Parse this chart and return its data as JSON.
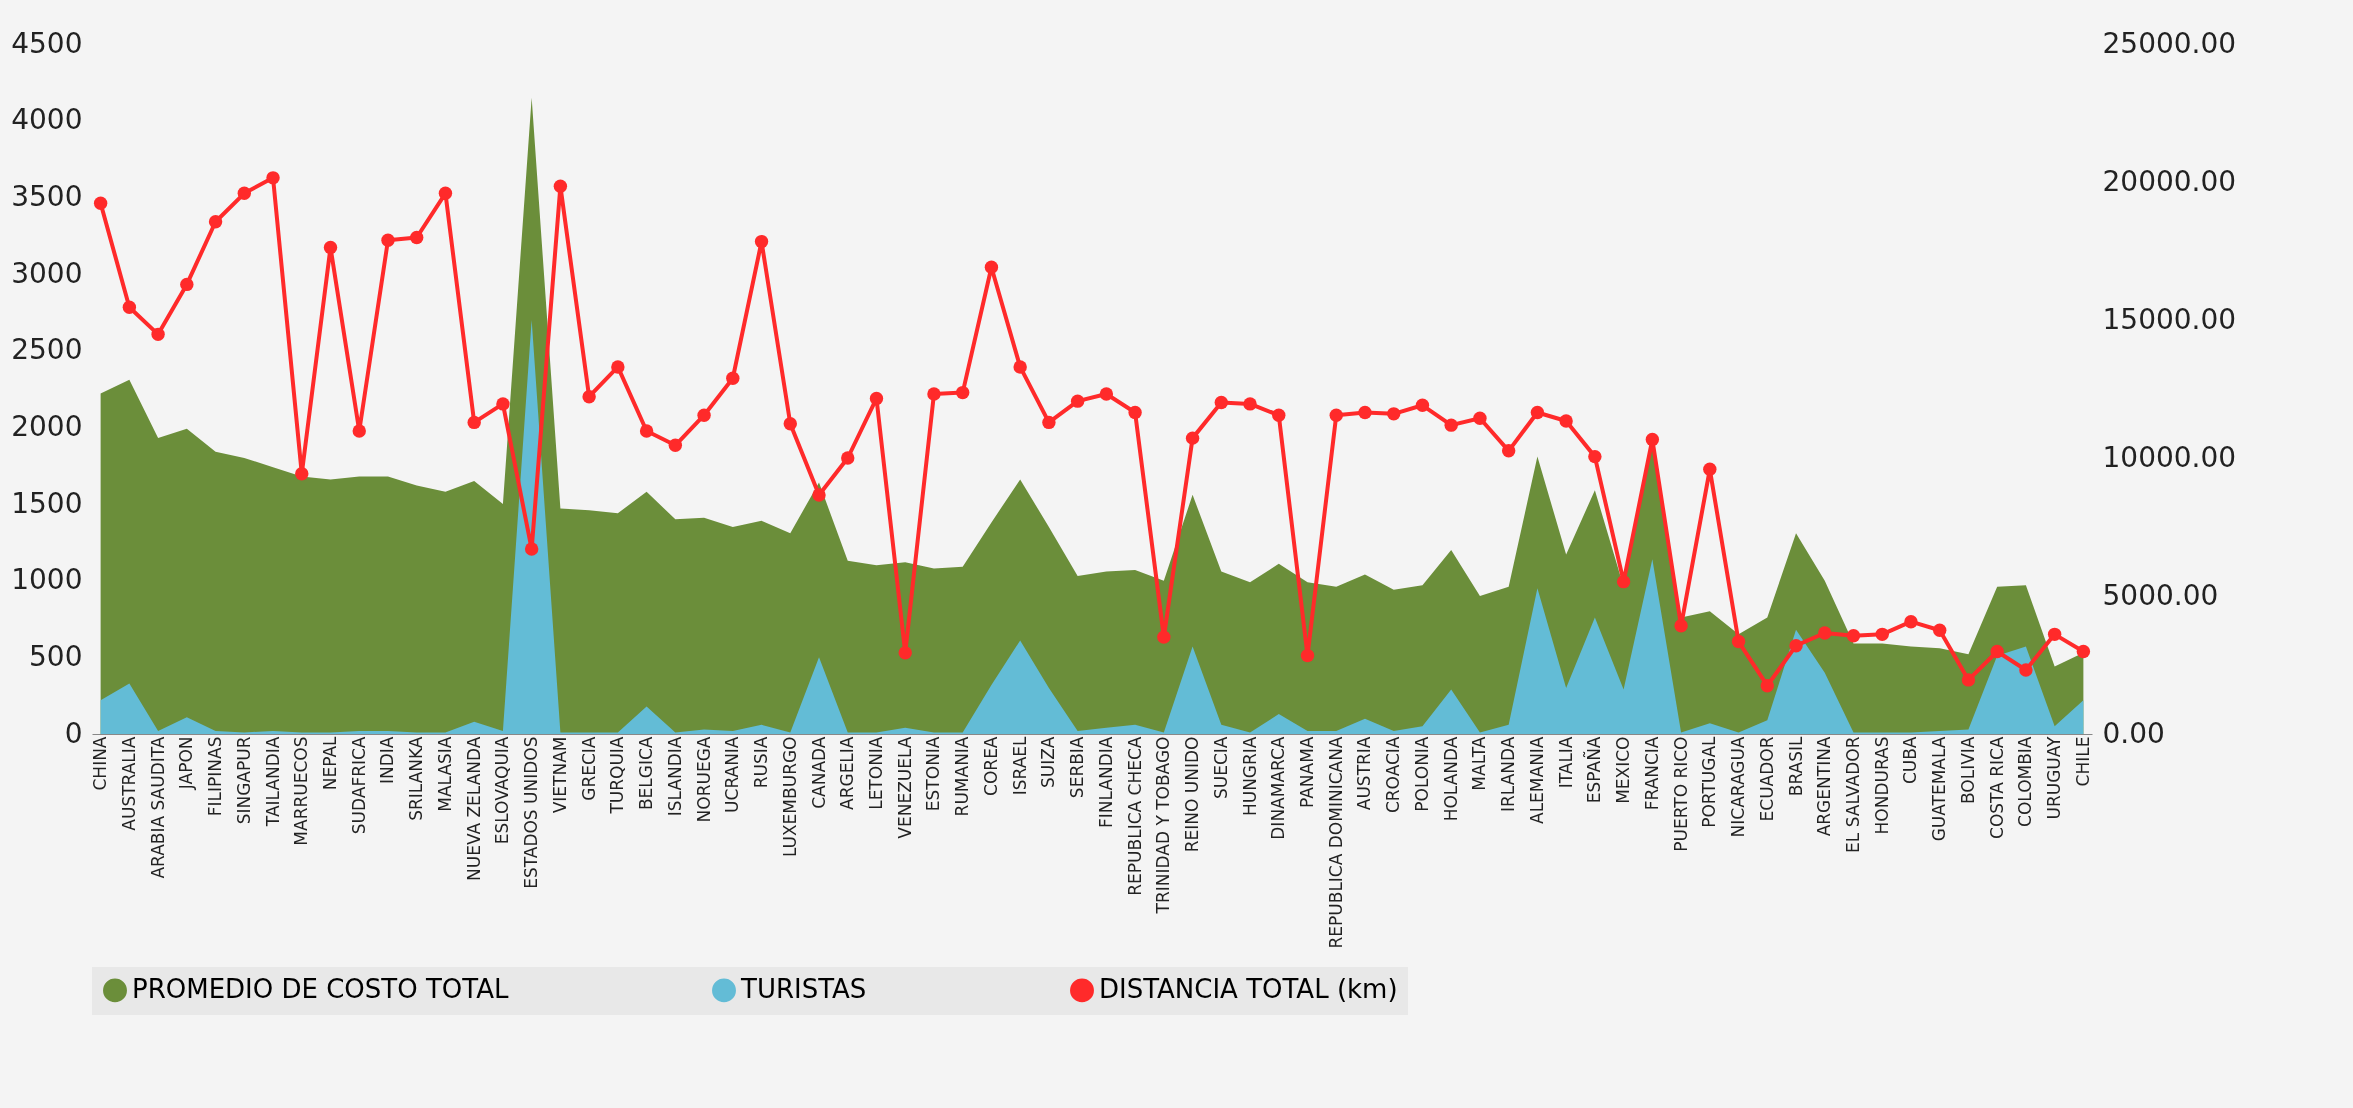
{
  "chart_data": {
    "type": "area",
    "categories": [
      "CHINA",
      "AUSTRALIA",
      "ARABIA SAUDITA",
      "JAPON",
      "FILIPINAS",
      "SINGAPUR",
      "TAILANDIA",
      "MARRUECOS",
      "NEPAL",
      "SUDAFRICA",
      "INDIA",
      "SRILANKA",
      "MALASIA",
      "NUEVA ZELANDA",
      "ESLOVAQUIA",
      "ESTADOS UNIDOS",
      "VIETNAM",
      "GRECIA",
      "TURQUIA",
      "BELGICA",
      "ISLANDIA",
      "NORUEGA",
      "UCRANIA",
      "RUSIA",
      "LUXEMBURGO",
      "CANADA",
      "ARGELIA",
      "LETONIA",
      "VENEZUELA",
      "ESTONIA",
      "RUMANIA",
      "COREA",
      "ISRAEL",
      "SUIZA",
      "SERBIA",
      "FINLANDIA",
      "REPUBLICA CHECA",
      "TRINIDAD Y TOBAGO",
      "REINO UNIDO",
      "SUECIA",
      "HUNGRIA",
      "DINAMARCA",
      "PANAMA",
      "REPUBLICA DOMINICANA",
      "AUSTRIA",
      "CROACIA",
      "POLONIA",
      "HOLANDA",
      "MALTA",
      "IRLANDA",
      "ALEMANIA",
      "ITALIA",
      "ESPAÑA",
      "MEXICO",
      "FRANCIA",
      "PUERTO RICO",
      "PORTUGAL",
      "NICARAGUA",
      "ECUADOR",
      "BRASIL",
      "ARGENTINA",
      "EL SALVADOR",
      "HONDURAS",
      "CUBA",
      "GUATEMALA",
      "BOLIVIA",
      "COSTA RICA",
      "COLOMBIA",
      "URUGUAY",
      "CHILE"
    ],
    "series": [
      {
        "name": "PROMEDIO DE COSTO TOTAL",
        "color": "#6b8e3a",
        "values": [
          2220,
          2310,
          1930,
          1990,
          1840,
          1800,
          1740,
          1680,
          1660,
          1680,
          1680,
          1620,
          1580,
          1650,
          1500,
          4150,
          1470,
          1460,
          1440,
          1580,
          1400,
          1410,
          1350,
          1390,
          1310,
          1640,
          1130,
          1100,
          1120,
          1080,
          1090,
          1380,
          1660,
          1350,
          1030,
          1060,
          1070,
          1000,
          1560,
          1060,
          990,
          1110,
          990,
          960,
          1040,
          940,
          970,
          1200,
          900,
          960,
          1810,
          1170,
          1590,
          960,
          1900,
          760,
          800,
          650,
          760,
          1310,
          1000,
          590,
          590,
          570,
          560,
          520,
          960,
          970,
          440,
          530
        ]
      },
      {
        "name": "TURISTAS",
        "color": "#63bcd6",
        "values": [
          220,
          330,
          20,
          110,
          20,
          10,
          20,
          10,
          10,
          20,
          20,
          10,
          10,
          80,
          20,
          2700,
          10,
          10,
          10,
          180,
          10,
          30,
          20,
          60,
          10,
          500,
          10,
          10,
          40,
          10,
          10,
          320,
          610,
          300,
          20,
          40,
          60,
          10,
          570,
          60,
          10,
          130,
          20,
          20,
          100,
          20,
          50,
          290,
          10,
          60,
          950,
          300,
          760,
          290,
          1140,
          10,
          70,
          10,
          90,
          680,
          400,
          10,
          10,
          10,
          20,
          30,
          510,
          570,
          50,
          220
        ]
      },
      {
        "name": "DISTANCIA TOTAL (km)",
        "type": "line",
        "axis": "y2",
        "marker": "circle",
        "color": "#ff2a2a",
        "values": [
          19230,
          15460,
          14480,
          16290,
          18560,
          19590,
          20150,
          9430,
          17630,
          10980,
          17890,
          17990,
          19590,
          11290,
          11960,
          6700,
          19850,
          12220,
          13300,
          10980,
          10460,
          11550,
          12890,
          17840,
          11240,
          8660,
          10000,
          12160,
          2940,
          12320,
          12370,
          16910,
          13300,
          11290,
          12060,
          12320,
          11650,
          3510,
          10720,
          12010,
          11960,
          11550,
          2840,
          11550,
          11650,
          11600,
          11910,
          11190,
          11440,
          10260,
          11650,
          11340,
          10050,
          5520,
          10670,
          3920,
          9590,
          3350,
          1750,
          3200,
          3660,
          3560,
          3610,
          4070,
          3760,
          1960,
          2990,
          2320,
          3610,
          2990
        ]
      }
    ],
    "ylim": [
      0,
      4500
    ],
    "yticks": [
      0,
      500,
      1000,
      1500,
      2000,
      2500,
      3000,
      3500,
      4000,
      4500
    ],
    "y2lim": [
      0,
      25000
    ],
    "y2ticks": [
      {
        "value": 0,
        "label": "0.00"
      },
      {
        "value": 5000,
        "label": "5000.00"
      },
      {
        "value": 10000,
        "label": "10000.00"
      },
      {
        "value": 15000,
        "label": "15000.00"
      },
      {
        "value": 20000,
        "label": "20000.00"
      },
      {
        "value": 25000,
        "label": "25000.00"
      }
    ],
    "legend": "bottom"
  }
}
